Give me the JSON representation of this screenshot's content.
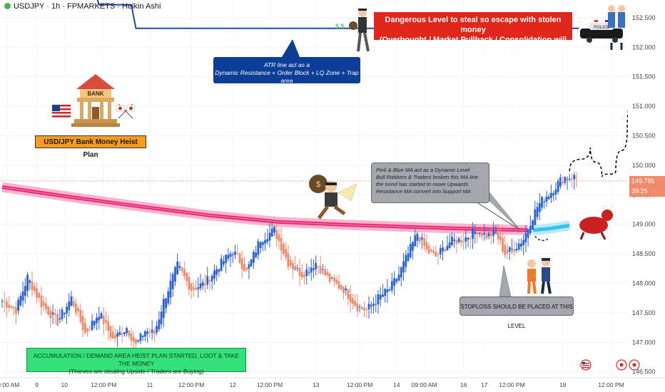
{
  "header": {
    "title": "USDJPY · 1h · FPMARKETS · Heikin Ashi"
  },
  "annotations": {
    "danger_line1": "Dangerous Level to steal so escape with stolen money",
    "danger_line2": "(Overbought / Market Pullback / Consolidation will Occur)",
    "atr_line1": "ATR line act as a",
    "atr_line2": "Dynamic Resistance + Order Block + LQ Zone + Trap area",
    "ma_line1": "Pink & Blue MA act as a Dynamic Level",
    "ma_line2": "Bull Robbers & Traders broken this MA line",
    "ma_line3": "the trend has started to move Upwards",
    "ma_line4": "Resistance MA convert into Support MA",
    "stoploss": "STOPLOSS SHOULD BE PLACED AT THIS LEVEL",
    "accum_line1": "ACCUMULATION / DEMAND AREA HEIST PLAN STARTED, LOOT & TAKE THE MONEY",
    "accum_line2": "(Thieves are stealing Upside / Traders are Buying)",
    "bank_plan": "USD/JPY Bank Money Heist Plan",
    "bank_sign": "BANK",
    "police_label": "POLICE"
  },
  "price_badges": {
    "last_price": "149.785",
    "countdown": "39:25"
  },
  "colors": {
    "bull": "#2a62d6",
    "bear": "#f08a6b",
    "ma_pink": "#e8236e",
    "ma_blue": "#35c4f0",
    "atr_line": "#1f4aa8",
    "danger_bg": "#e1261c",
    "info_blue": "#0d3e97",
    "green_box": "#34e07a",
    "bank_label": "#f79c1e"
  },
  "chart_data": {
    "type": "candlestick",
    "style": "Heikin Ashi",
    "symbol": "USDJPY",
    "timeframe": "1h",
    "broker": "FPMARKETS",
    "y_axis": {
      "min": 146.4,
      "max": 152.8,
      "ticks": [
        146.5,
        147.0,
        147.5,
        148.0,
        148.5,
        149.0,
        149.5,
        150.0,
        150.5,
        151.0,
        151.5,
        152.0,
        152.5
      ]
    },
    "x_axis": {
      "labels": [
        "09:00 AM",
        "9",
        "10",
        "12:00 PM",
        "11",
        "12:00 PM",
        "12",
        "12:00 PM",
        "13",
        "12:00 PM",
        "14",
        "09:00 AM",
        "16",
        "17",
        "12:00 PM",
        "18",
        "12:00 PM"
      ]
    },
    "last_price": 149.785,
    "series": [
      {
        "name": "Heikin Ashi candles",
        "anchors": [
          [
            0,
            147.7
          ],
          [
            6,
            147.55
          ],
          [
            11,
            148.1
          ],
          [
            17,
            147.65
          ],
          [
            24,
            147.35
          ],
          [
            30,
            147.75
          ],
          [
            36,
            147.15
          ],
          [
            42,
            147.5
          ],
          [
            48,
            147.05
          ],
          [
            54,
            147.25
          ],
          [
            58,
            146.95
          ],
          [
            62,
            147.2
          ],
          [
            66,
            147.15
          ],
          [
            70,
            147.7
          ],
          [
            76,
            148.3
          ],
          [
            82,
            147.9
          ],
          [
            88,
            148.0
          ],
          [
            94,
            148.3
          ],
          [
            100,
            148.55
          ],
          [
            106,
            148.2
          ],
          [
            112,
            148.75
          ],
          [
            118,
            148.9
          ],
          [
            124,
            148.35
          ],
          [
            130,
            148.15
          ],
          [
            136,
            148.35
          ],
          [
            142,
            148.05
          ],
          [
            148,
            147.9
          ],
          [
            154,
            147.6
          ],
          [
            158,
            147.55
          ],
          [
            163,
            147.75
          ],
          [
            168,
            147.9
          ],
          [
            172,
            148.15
          ],
          [
            176,
            148.5
          ],
          [
            180,
            148.85
          ],
          [
            184,
            148.55
          ],
          [
            188,
            148.45
          ],
          [
            194,
            148.7
          ],
          [
            200,
            148.75
          ],
          [
            206,
            148.9
          ],
          [
            210,
            148.8
          ],
          [
            214,
            148.85
          ],
          [
            218,
            148.5
          ],
          [
            222,
            148.6
          ],
          [
            226,
            148.75
          ],
          [
            229,
            149.05
          ],
          [
            232,
            149.3
          ],
          [
            235,
            149.45
          ],
          [
            238,
            149.55
          ],
          [
            241,
            149.7
          ],
          [
            244,
            149.8
          ]
        ]
      },
      {
        "name": "MA pink (resistance)",
        "points": [
          [
            0,
            149.63
          ],
          [
            30,
            149.46
          ],
          [
            60,
            149.3
          ],
          [
            90,
            149.15
          ],
          [
            120,
            149.04
          ],
          [
            150,
            148.99
          ],
          [
            180,
            148.95
          ],
          [
            205,
            148.92
          ],
          [
            228,
            148.9
          ]
        ]
      },
      {
        "name": "MA blue (support)",
        "points": [
          [
            230,
            148.9
          ],
          [
            238,
            148.93
          ],
          [
            246,
            148.98
          ]
        ]
      },
      {
        "name": "ATR line",
        "points": [
          [
            0,
            152.96
          ],
          [
            40,
            152.96
          ],
          [
            42,
            152.72
          ],
          [
            56,
            152.72
          ],
          [
            58,
            152.32
          ],
          [
            250,
            152.32
          ]
        ]
      },
      {
        "name": "Projected path",
        "points": [
          [
            246,
            149.9
          ],
          [
            255,
            150.3
          ],
          [
            260,
            149.8
          ],
          [
            266,
            149.9
          ],
          [
            271,
            150.6
          ],
          [
            275,
            151.5
          ],
          [
            279,
            152.3
          ]
        ]
      }
    ],
    "levels": [
      {
        "label": "stoploss",
        "value": 148.4
      },
      {
        "label": "ATR resistance",
        "value": 152.32
      }
    ]
  }
}
